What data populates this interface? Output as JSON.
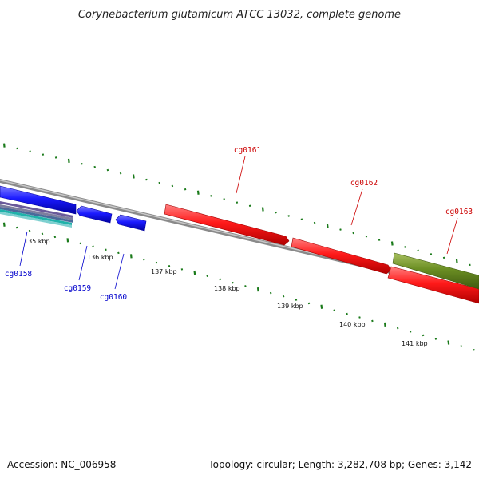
{
  "title": "Corynebacterium glutamicum ATCC 13032, complete genome",
  "footer": {
    "accession": "Accession: NC_006958",
    "summary": "Topology: circular; Length: 3,282,708 bp; Genes: 3,142"
  },
  "colors": {
    "backbone": "#8a8a8a",
    "tick_green": "#1a7a1a",
    "forward_gene_red": "#ff1a1a",
    "reverse_gene_blue": "#1a1aff",
    "label_red": "#cc0000",
    "label_blue": "#0000cc",
    "olive_feature": "#6b8e23",
    "teal_feature": "#20b2aa",
    "purple_feature": "#6a5a9a"
  },
  "ticks": [
    {
      "label": "135 kbp"
    },
    {
      "label": "136 kbp"
    },
    {
      "label": "137 kbp"
    },
    {
      "label": "138 kbp"
    },
    {
      "label": "139 kbp"
    },
    {
      "label": "140 kbp"
    },
    {
      "label": "141 kbp"
    }
  ],
  "genes": [
    {
      "id": "cg0158",
      "strand": "reverse",
      "color": "blue"
    },
    {
      "id": "cg0159",
      "strand": "reverse",
      "color": "blue"
    },
    {
      "id": "cg0160",
      "strand": "reverse",
      "color": "blue"
    },
    {
      "id": "cg0161",
      "strand": "forward",
      "color": "red"
    },
    {
      "id": "cg0162",
      "strand": "forward",
      "color": "red"
    },
    {
      "id": "cg0163",
      "strand": "forward",
      "color": "red"
    }
  ]
}
